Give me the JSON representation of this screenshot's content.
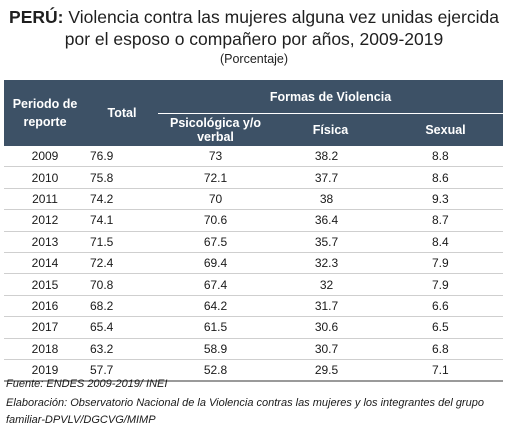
{
  "title_country": "PERÚ:",
  "title_rest_line1": " Violencia contra las mujeres alguna vez unidas ejercida",
  "title_line2": "por el esposo o compañero por años, 2009-2019",
  "subtitle": "(Porcentaje)",
  "table": {
    "col_periodo": "Periodo de reporte",
    "col_total": "Total",
    "col_group": "Formas de Violencia",
    "col_psicologica": "Psicológica y/o verbal",
    "col_fisica": "Física",
    "col_sexual": "Sexual",
    "rows": [
      {
        "year": "2009",
        "total": "76.9",
        "psicologica": "73",
        "fisica": "38.2",
        "sexual": "8.8"
      },
      {
        "year": "2010",
        "total": "75.8",
        "psicologica": "72.1",
        "fisica": "37.7",
        "sexual": "8.6"
      },
      {
        "year": "2011",
        "total": "74.2",
        "psicologica": "70",
        "fisica": "38",
        "sexual": "9.3"
      },
      {
        "year": "2012",
        "total": "74.1",
        "psicologica": "70.6",
        "fisica": "36.4",
        "sexual": "8.7"
      },
      {
        "year": "2013",
        "total": "71.5",
        "psicologica": "67.5",
        "fisica": "35.7",
        "sexual": "8.4"
      },
      {
        "year": "2014",
        "total": "72.4",
        "psicologica": "69.4",
        "fisica": "32.3",
        "sexual": "7.9"
      },
      {
        "year": "2015",
        "total": "70.8",
        "psicologica": "67.4",
        "fisica": "32",
        "sexual": "7.9"
      },
      {
        "year": "2016",
        "total": "68.2",
        "psicologica": "64.2",
        "fisica": "31.7",
        "sexual": "6.6"
      },
      {
        "year": "2017",
        "total": "65.4",
        "psicologica": "61.5",
        "fisica": "30.6",
        "sexual": "6.5"
      },
      {
        "year": "2018",
        "total": "63.2",
        "psicologica": "58.9",
        "fisica": "30.7",
        "sexual": "6.8"
      },
      {
        "year": "2019",
        "total": "57.7",
        "psicologica": "52.8",
        "fisica": "29.5",
        "sexual": "7.1"
      }
    ]
  },
  "fuente": "Fuente: ENDES 2009-2019/ INEI",
  "elaboracion": "Elaboración: Observatorio Nacional de la Violencia contras las mujeres y los integrantes del grupo familiar-DPVLV/DGCVG/MIMP",
  "colors": {
    "header_bg": "#3d5166",
    "header_text": "#ffffff"
  }
}
